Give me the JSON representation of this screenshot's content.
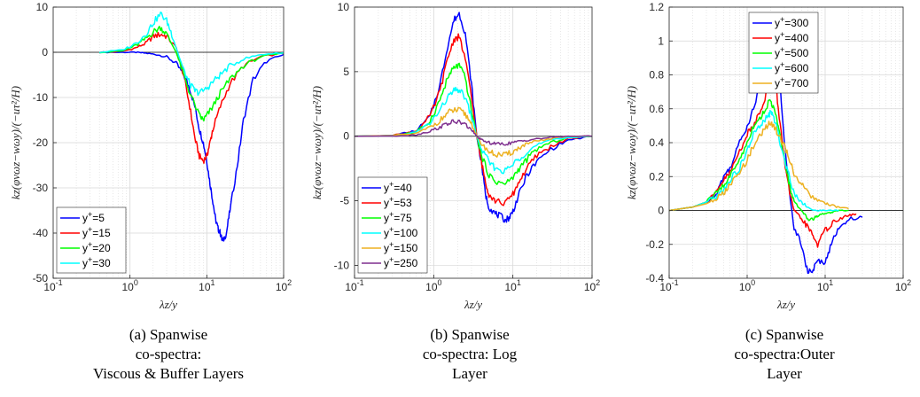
{
  "chart_data": [
    {
      "type": "line",
      "id": "a",
      "xscale": "log",
      "xlim": [
        0.1,
        100
      ],
      "ylim": [
        -50,
        10
      ],
      "xticks": [
        0.1,
        1,
        10,
        100
      ],
      "xtick_labels": [
        "10^-1",
        "10^0",
        "10^1",
        "10^2"
      ],
      "yticks": [
        -50,
        -40,
        -30,
        -20,
        -10,
        0,
        10
      ],
      "ytick_labels": [
        "-50",
        "-40",
        "-30",
        "-20",
        "-10",
        "0",
        "10"
      ],
      "xlabel": "λz/y",
      "ylabel": "kz(φvωz−wωy)/(−uτ²/H)",
      "grid": true,
      "legend_position": "bottom-left",
      "caption": [
        "(a) Spanwise",
        "co-spectra:",
        "Viscous & Buffer Layers"
      ],
      "series": [
        {
          "name": "y+=5",
          "color": "#0000ff",
          "x": [
            0.4,
            0.8,
            1.2,
            1.6,
            2.2,
            3,
            4,
            5,
            6,
            7,
            8,
            9,
            10,
            11,
            12,
            13,
            14,
            15,
            16,
            18,
            20,
            25,
            30,
            40,
            60,
            100
          ],
          "y": [
            0,
            0,
            0,
            -0.2,
            -0.5,
            -1,
            -2.5,
            -5,
            -8,
            -12,
            -17,
            -20,
            -24,
            -29,
            -33,
            -37,
            -39,
            -40,
            -42,
            -40,
            -35,
            -25,
            -15,
            -6,
            -2,
            -0.5
          ]
        },
        {
          "name": "y+=15",
          "color": "#ff0000",
          "x": [
            0.4,
            0.8,
            1.2,
            1.6,
            2.0,
            2.5,
            3,
            4,
            5,
            6,
            7,
            8,
            9,
            10,
            11,
            12,
            15,
            20,
            30,
            50,
            100
          ],
          "y": [
            0,
            0.2,
            1,
            2,
            3.5,
            4,
            3.5,
            1,
            -5,
            -12,
            -19,
            -23,
            -24,
            -23,
            -20,
            -17,
            -12,
            -7,
            -3,
            -1,
            -0.2
          ]
        },
        {
          "name": "y+=20",
          "color": "#00ff00",
          "x": [
            0.4,
            0.8,
            1.2,
            1.6,
            2.0,
            2.5,
            3,
            4,
            5,
            6,
            8,
            9,
            10,
            12,
            15,
            20,
            30,
            50,
            100
          ],
          "y": [
            0,
            0.3,
            1.5,
            3,
            4.5,
            5.5,
            4,
            0,
            -5,
            -9,
            -14,
            -15,
            -14,
            -12,
            -9,
            -6,
            -3,
            -1,
            -0.2
          ]
        },
        {
          "name": "y+=30",
          "color": "#00ffff",
          "x": [
            0.4,
            0.8,
            1.2,
            1.6,
            2.0,
            2.5,
            3,
            3.5,
            4,
            5,
            6,
            7,
            8,
            10,
            12,
            15,
            20,
            30,
            50,
            100
          ],
          "y": [
            0,
            0.5,
            2,
            4,
            6.5,
            8.5,
            7,
            4,
            1,
            -4,
            -7,
            -8.5,
            -9,
            -8,
            -6.5,
            -5,
            -3,
            -1.5,
            -0.5,
            -0.1
          ]
        }
      ]
    },
    {
      "type": "line",
      "id": "b",
      "xscale": "log",
      "xlim": [
        0.1,
        100
      ],
      "ylim": [
        -11,
        10
      ],
      "xticks": [
        0.1,
        1,
        10,
        100
      ],
      "xtick_labels": [
        "10^-1",
        "10^0",
        "10^1",
        "10^2"
      ],
      "yticks": [
        -10,
        -5,
        0,
        5,
        10
      ],
      "ytick_labels": [
        "-10",
        "-5",
        "0",
        "5",
        "10"
      ],
      "xlabel": "λz/y",
      "ylabel": "kz(φvωz−wωy)/(−uτ²/H)",
      "grid": true,
      "legend_position": "bottom-left",
      "caption": [
        "(b) Spanwise",
        "co-spectra: Log",
        "Layer"
      ],
      "series": [
        {
          "name": "y+=40",
          "color": "#0000ff",
          "x": [
            0.1,
            0.3,
            0.6,
            0.9,
            1.2,
            1.5,
            1.8,
            2.1,
            2.5,
            3,
            3.5,
            4,
            4.5,
            5,
            6,
            7,
            8,
            9,
            10,
            12,
            15,
            20,
            30,
            50,
            100
          ],
          "y": [
            0,
            0.05,
            0.4,
            1.5,
            4,
            7,
            9,
            9.5,
            8,
            4,
            0,
            -2,
            -4.5,
            -5.5,
            -6,
            -6.2,
            -6.5,
            -6.3,
            -5.8,
            -4.5,
            -3,
            -2,
            -1,
            -0.3,
            0
          ]
        },
        {
          "name": "y+=53",
          "color": "#ff0000",
          "x": [
            0.1,
            0.3,
            0.6,
            0.9,
            1.2,
            1.5,
            1.8,
            2.1,
            2.5,
            3,
            3.5,
            4,
            4.5,
            5,
            6,
            8,
            10,
            12,
            15,
            20,
            30,
            50,
            100
          ],
          "y": [
            0,
            0.05,
            0.4,
            1.5,
            3.5,
            6,
            7.5,
            7.7,
            6,
            3,
            0,
            -2,
            -3.5,
            -4.5,
            -5,
            -5.2,
            -4.5,
            -3.5,
            -2.5,
            -1.5,
            -0.8,
            -0.2,
            0
          ]
        },
        {
          "name": "y+=75",
          "color": "#00ff00",
          "x": [
            0.1,
            0.3,
            0.6,
            0.9,
            1.2,
            1.5,
            1.8,
            2.1,
            2.5,
            3,
            3.5,
            4,
            5,
            6,
            8,
            10,
            12,
            15,
            20,
            30,
            50,
            100
          ],
          "y": [
            0,
            0.05,
            0.3,
            1.2,
            2.8,
            4.5,
            5.3,
            5.5,
            4.5,
            2,
            0,
            -1.5,
            -3,
            -3.5,
            -3.7,
            -3.2,
            -2.5,
            -1.8,
            -1,
            -0.5,
            -0.1,
            0
          ]
        },
        {
          "name": "y+=100",
          "color": "#00ffff",
          "x": [
            0.1,
            0.3,
            0.6,
            0.9,
            1.2,
            1.5,
            1.8,
            2.1,
            2.5,
            3,
            3.5,
            4,
            5,
            6,
            8,
            10,
            12,
            15,
            20,
            30,
            50,
            100
          ],
          "y": [
            0,
            0.05,
            0.3,
            1,
            2,
            3,
            3.5,
            3.6,
            3,
            1.5,
            0,
            -1,
            -2,
            -2.5,
            -2.7,
            -2.2,
            -1.7,
            -1.2,
            -0.7,
            -0.3,
            -0.1,
            0
          ]
        },
        {
          "name": "y+=150",
          "color": "#edb120",
          "x": [
            0.1,
            0.3,
            0.6,
            0.9,
            1.2,
            1.5,
            1.8,
            2.1,
            2.5,
            3,
            3.5,
            4,
            5,
            6,
            8,
            10,
            12,
            15,
            20,
            30,
            50,
            100
          ],
          "y": [
            0,
            0.05,
            0.2,
            0.7,
            1.2,
            1.8,
            2,
            2,
            1.7,
            1,
            0,
            -0.6,
            -1.2,
            -1.4,
            -1.5,
            -1.2,
            -0.9,
            -0.6,
            -0.4,
            -0.2,
            0,
            0
          ]
        },
        {
          "name": "y+=250",
          "color": "#7e2f8e",
          "x": [
            0.1,
            0.3,
            0.6,
            0.9,
            1.2,
            1.5,
            1.8,
            2.1,
            2.5,
            3,
            3.5,
            4,
            5,
            6,
            8,
            10,
            12,
            15,
            20,
            30,
            50,
            100
          ],
          "y": [
            0,
            0.02,
            0.1,
            0.4,
            0.7,
            1,
            1.1,
            1.1,
            0.9,
            0.5,
            0,
            -0.3,
            -0.5,
            -0.6,
            -0.6,
            -0.5,
            -0.4,
            -0.3,
            -0.2,
            -0.1,
            0,
            0
          ]
        }
      ]
    },
    {
      "type": "line",
      "id": "c",
      "xscale": "log",
      "xlim": [
        0.1,
        100
      ],
      "ylim": [
        -0.4,
        1.2
      ],
      "xticks": [
        0.1,
        1,
        10,
        100
      ],
      "xtick_labels": [
        "10^-1",
        "10^0",
        "10^1",
        "10^2"
      ],
      "yticks": [
        -0.4,
        -0.2,
        0,
        0.2,
        0.4,
        0.6,
        0.8,
        1,
        1.2
      ],
      "ytick_labels": [
        "-0.4",
        "-0.2",
        "0",
        "0.2",
        "0.4",
        "0.6",
        "0.8",
        "1",
        "1.2"
      ],
      "xlabel": "λz/y",
      "ylabel": "kz(φvωz−wωy)/(−uτ²/H)",
      "grid": true,
      "legend_position": "top-right",
      "caption": [
        "(c) Spanwise",
        "co-spectra:Outer",
        "Layer"
      ],
      "series": [
        {
          "name": "y+=300",
          "color": "#0000ff",
          "x": [
            0.1,
            0.2,
            0.3,
            0.4,
            0.5,
            0.6,
            0.8,
            1,
            1.2,
            1.5,
            1.8,
            2,
            2.2,
            2.5,
            3,
            3.5,
            4,
            5,
            6,
            7,
            8,
            10,
            12,
            15,
            20,
            30
          ],
          "y": [
            0,
            0.02,
            0.05,
            0.1,
            0.2,
            0.25,
            0.4,
            0.5,
            0.6,
            0.75,
            1.0,
            1.1,
            1.15,
            0.9,
            0.4,
            0.1,
            -0.1,
            -0.2,
            -0.37,
            -0.35,
            -0.3,
            -0.3,
            -0.2,
            -0.1,
            -0.05,
            -0.04
          ]
        },
        {
          "name": "y+=400",
          "color": "#ff0000",
          "x": [
            0.1,
            0.2,
            0.3,
            0.4,
            0.5,
            0.6,
            0.8,
            1,
            1.2,
            1.5,
            1.8,
            2,
            2.2,
            2.5,
            3,
            3.5,
            4,
            5,
            6,
            7,
            8,
            10,
            12,
            15,
            20,
            25
          ],
          "y": [
            0,
            0.02,
            0.05,
            0.1,
            0.18,
            0.22,
            0.35,
            0.45,
            0.5,
            0.6,
            0.7,
            0.8,
            0.88,
            0.6,
            0.3,
            0.1,
            0,
            -0.05,
            -0.1,
            -0.15,
            -0.2,
            -0.12,
            -0.08,
            -0.05,
            -0.03,
            -0.02
          ]
        },
        {
          "name": "y+=500",
          "color": "#00ff00",
          "x": [
            0.1,
            0.2,
            0.3,
            0.4,
            0.5,
            0.6,
            0.8,
            1,
            1.2,
            1.5,
            1.8,
            2,
            2.2,
            2.5,
            3,
            3.5,
            4,
            5,
            6,
            7,
            8,
            10,
            12,
            15,
            20
          ],
          "y": [
            0,
            0.02,
            0.05,
            0.1,
            0.15,
            0.2,
            0.3,
            0.4,
            0.5,
            0.55,
            0.62,
            0.65,
            0.6,
            0.5,
            0.3,
            0.15,
            0.05,
            0,
            -0.05,
            -0.05,
            -0.03,
            -0.02,
            -0.01,
            0,
            0
          ]
        },
        {
          "name": "y+=600",
          "color": "#00ffff",
          "x": [
            0.1,
            0.2,
            0.3,
            0.4,
            0.5,
            0.6,
            0.8,
            1,
            1.2,
            1.5,
            1.8,
            2,
            2.2,
            2.5,
            3,
            3.5,
            4,
            5,
            6,
            7,
            8,
            10,
            12,
            15
          ],
          "y": [
            0,
            0.02,
            0.05,
            0.08,
            0.12,
            0.18,
            0.25,
            0.35,
            0.45,
            0.5,
            0.55,
            0.58,
            0.55,
            0.45,
            0.3,
            0.2,
            0.1,
            0.05,
            0.02,
            0,
            0,
            0,
            0,
            0
          ]
        },
        {
          "name": "y+=700",
          "color": "#edb120",
          "x": [
            0.1,
            0.2,
            0.3,
            0.4,
            0.5,
            0.6,
            0.8,
            1,
            1.2,
            1.5,
            1.8,
            2,
            2.2,
            2.5,
            3,
            3.5,
            4,
            5,
            6,
            8,
            10,
            12,
            15,
            20
          ],
          "y": [
            0,
            0.02,
            0.04,
            0.07,
            0.1,
            0.15,
            0.22,
            0.3,
            0.38,
            0.45,
            0.5,
            0.52,
            0.5,
            0.45,
            0.38,
            0.3,
            0.22,
            0.15,
            0.1,
            0.06,
            0.04,
            0.03,
            0.02,
            0.01
          ]
        }
      ]
    }
  ]
}
